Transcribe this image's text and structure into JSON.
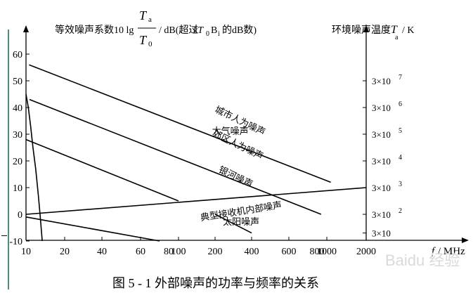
{
  "chart_data": {
    "type": "line",
    "title": "图 5 - 1 外部噪声的功率与频率的关系",
    "ylabel_left": "等效噪声系数10 lg",
    "ylabel_left_frac_num": "T",
    "ylabel_left_frac_num_sub": "a",
    "ylabel_left_frac_den": "T",
    "ylabel_left_frac_den_sub": "0",
    "ylabel_left_suffix": "/ dB(超过",
    "ylabel_left_kt": "kT",
    "ylabel_left_kt_sub": "0",
    "ylabel_left_bi": "B",
    "ylabel_left_bi_sub": "i",
    "ylabel_left_end": "的dB数)",
    "ylabel_right": "环境噪声温度",
    "ylabel_right_sym": "T",
    "ylabel_right_sym_sub": "a",
    "ylabel_right_unit": "/ K",
    "xlabel_sym": "f",
    "xlabel_unit": "/ MHz",
    "x_ticks": [
      "10",
      "20",
      "40",
      "60",
      "80",
      "100",
      "200",
      "400",
      "600",
      "800",
      "1000",
      "2000"
    ],
    "y_ticks": [
      "60",
      "50",
      "40",
      "30",
      "20",
      "10",
      "0",
      "-10"
    ],
    "y_tick_values": [
      60,
      50,
      40,
      30,
      20,
      10,
      0,
      -10
    ],
    "y_range": [
      -10,
      60
    ],
    "right_ticks": [
      {
        "mant": "3×10",
        "exp": "7",
        "y": 50
      },
      {
        "mant": "3×10",
        "exp": "6",
        "y": 40
      },
      {
        "mant": "3×10",
        "exp": "5",
        "y": 30
      },
      {
        "mant": "3×10",
        "exp": "4",
        "y": 20
      },
      {
        "mant": "3×10",
        "exp": "3",
        "y": 10
      },
      {
        "mant": "3×10",
        "exp": "2",
        "y": 0
      },
      {
        "mant": "3×10",
        "exp": "",
        "y": -7
      }
    ],
    "series": [
      {
        "name": "城市人为噪声",
        "points": [
          [
            10.8,
            56
          ],
          [
            1100,
            12
          ]
        ]
      },
      {
        "name": "郊区人为噪声",
        "points": [
          [
            10.9,
            43
          ],
          [
            940,
            0
          ]
        ]
      },
      {
        "name": "银河噪声",
        "points": [
          [
            10,
            28
          ],
          [
            100,
            5
          ]
        ]
      },
      {
        "name": "典型接收机内部噪声",
        "points": [
          [
            10,
            0
          ],
          [
            2000,
            10
          ]
        ]
      },
      {
        "name": "太阳噪声",
        "points": [
          [
            10,
            -1
          ],
          [
            80,
            -10
          ]
        ]
      },
      {
        "name": "太阳噪声",
        "points": [
          [
            200,
            0
          ],
          [
            400,
            -7
          ]
        ]
      },
      {
        "name": "大气噪声",
        "points": [
          [
            10,
            45
          ],
          [
            10.6,
            40
          ],
          [
            11.2,
            33
          ],
          [
            11.8,
            25
          ],
          [
            12.5,
            17
          ],
          [
            13.2,
            7
          ],
          [
            13.7,
            -1
          ],
          [
            14.2,
            -10
          ]
        ]
      }
    ],
    "annotations": [
      {
        "text": "城市人为噪声",
        "x": 330,
        "y": 34,
        "rotate": 26
      },
      {
        "text": "郊区人为噪声",
        "x": 318,
        "y": 25,
        "rotate": 26
      },
      {
        "text": "银河噪声",
        "x": 306,
        "y": 13,
        "rotate": 26
      },
      {
        "text": "大气噪声",
        "x": 283,
        "y": 30,
        "rotate": 0
      },
      {
        "text": "典型接收机内部噪声",
        "x": 345,
        "y": 0,
        "rotate": -9
      },
      {
        "text": "太阳噪声",
        "x": 343,
        "y": -4,
        "rotate": 0
      }
    ]
  },
  "watermark": "Baidu 经验"
}
